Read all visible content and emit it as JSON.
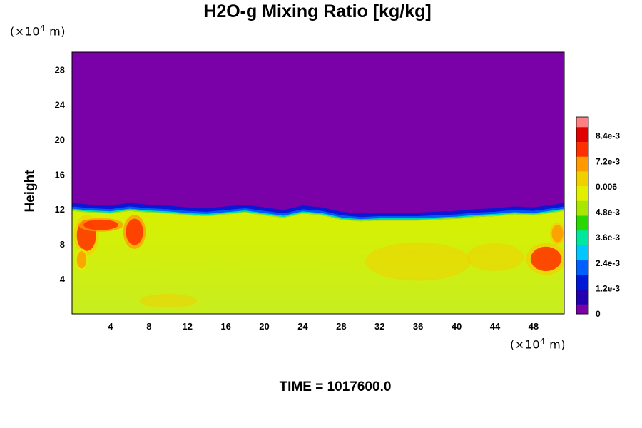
{
  "chart_data": {
    "type": "heatmap",
    "title": "H2O-g Mixing Ratio [kg/kg]",
    "ylabel": "Height",
    "x_unit": {
      "prefix": "(×10",
      "exp": "4",
      "suffix": " m)"
    },
    "y_unit": {
      "prefix": "(×10",
      "exp": "4",
      "suffix": " m)"
    },
    "xlim": [
      0,
      51.2
    ],
    "ylim": [
      0,
      30
    ],
    "x_ticks": [
      4,
      8,
      12,
      16,
      20,
      24,
      28,
      32,
      36,
      40,
      44,
      48
    ],
    "y_ticks": [
      4,
      8,
      12,
      16,
      20,
      24,
      28
    ],
    "colorbar": {
      "min": 0,
      "max": 0.0093,
      "tick_values": [
        0,
        0.0012,
        0.0024,
        0.0036,
        0.0048,
        0.006,
        0.0072,
        0.0084
      ],
      "tick_labels": [
        "0",
        "1.2e-3",
        "2.4e-3",
        "3.6e-3",
        "4.8e-3",
        "0.006",
        "7.2e-3",
        "8.4e-3"
      ]
    },
    "field": {
      "upper_value": 0,
      "lower_value": 0.0065,
      "interface_height_profile": [
        {
          "x": 0,
          "y": 11.8
        },
        {
          "x": 2,
          "y": 11.6
        },
        {
          "x": 4,
          "y": 11.5
        },
        {
          "x": 6,
          "y": 11.8
        },
        {
          "x": 8,
          "y": 11.6
        },
        {
          "x": 10,
          "y": 11.5
        },
        {
          "x": 12,
          "y": 11.3
        },
        {
          "x": 14,
          "y": 11.2
        },
        {
          "x": 16,
          "y": 11.4
        },
        {
          "x": 18,
          "y": 11.6
        },
        {
          "x": 20,
          "y": 11.3
        },
        {
          "x": 22,
          "y": 11.0
        },
        {
          "x": 24,
          "y": 11.5
        },
        {
          "x": 26,
          "y": 11.3
        },
        {
          "x": 28,
          "y": 10.8
        },
        {
          "x": 30,
          "y": 10.6
        },
        {
          "x": 32,
          "y": 10.7
        },
        {
          "x": 34,
          "y": 10.7
        },
        {
          "x": 36,
          "y": 10.7
        },
        {
          "x": 38,
          "y": 10.8
        },
        {
          "x": 40,
          "y": 10.9
        },
        {
          "x": 42,
          "y": 11.1
        },
        {
          "x": 44,
          "y": 11.2
        },
        {
          "x": 46,
          "y": 11.4
        },
        {
          "x": 48,
          "y": 11.3
        },
        {
          "x": 50,
          "y": 11.6
        },
        {
          "x": 51.2,
          "y": 11.8
        }
      ],
      "moist_patches": [
        {
          "x": 1.5,
          "y": 9.0,
          "rx": 1.0,
          "ry": 1.8,
          "value": 0.0078
        },
        {
          "x": 3.0,
          "y": 10.2,
          "rx": 1.8,
          "ry": 0.6,
          "value": 0.0082
        },
        {
          "x": 6.5,
          "y": 9.4,
          "rx": 0.9,
          "ry": 1.5,
          "value": 0.008
        },
        {
          "x": 1.0,
          "y": 6.2,
          "rx": 0.5,
          "ry": 1.0,
          "value": 0.0072
        },
        {
          "x": 49.3,
          "y": 6.3,
          "rx": 1.6,
          "ry": 1.4,
          "value": 0.0078
        },
        {
          "x": 50.5,
          "y": 9.2,
          "rx": 0.6,
          "ry": 1.0,
          "value": 0.0075
        }
      ],
      "dry_swirls": [
        {
          "x": 36,
          "y": 6.0,
          "rx": 5.5,
          "ry": 2.2,
          "value": 0.0062
        },
        {
          "x": 44,
          "y": 6.5,
          "rx": 3.0,
          "ry": 1.6,
          "value": 0.0062
        },
        {
          "x": 10,
          "y": 1.5,
          "rx": 3.0,
          "ry": 0.8,
          "value": 0.0063
        }
      ]
    }
  },
  "time_label": "TIME = 1017600.0",
  "colors": {
    "background": "#ffffff",
    "colormap": [
      "#7a00a8",
      "#2200b0",
      "#0018d8",
      "#0060ff",
      "#00c8ff",
      "#00e8a0",
      "#28d800",
      "#a8e800",
      "#e0f000",
      "#f0d000",
      "#ff9a00",
      "#ff3000",
      "#e00000",
      "#ff8080"
    ]
  }
}
